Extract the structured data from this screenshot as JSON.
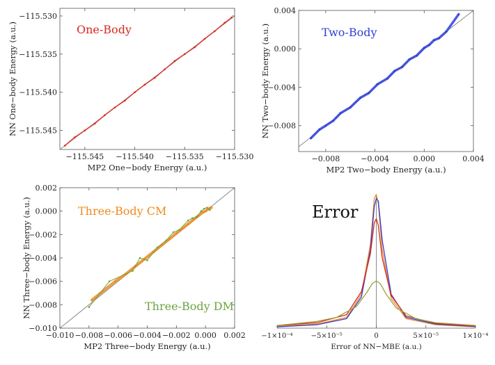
{
  "chart_data": [
    {
      "type": "scatter",
      "id": "one",
      "inset_label": "One-Body",
      "inset_color": "#d6281e",
      "xlabel": "MP2 One−body Energy (a.u.)",
      "ylabel": "NN One−body Energy (a.u.)",
      "xlim": [
        -115.5475,
        -115.53
      ],
      "ylim": [
        -115.5475,
        -115.529
      ],
      "xticks": [
        -115.545,
        -115.54,
        -115.535,
        -115.53
      ],
      "xtick_labels": [
        "−115.545",
        "−115.540",
        "−115.535",
        "−115.530"
      ],
      "yticks": [
        -115.545,
        -115.54,
        -115.535,
        -115.53
      ],
      "ytick_labels": [
        "−115.545",
        "−115.540",
        "−115.535",
        "−115.530"
      ],
      "reference_line": true,
      "series": [
        {
          "color": "#d6281e",
          "points": [
            [
              -115.547,
              -115.547
            ],
            [
              -115.546,
              -115.5459
            ],
            [
              -115.545,
              -115.545
            ],
            [
              -115.544,
              -115.5441
            ],
            [
              -115.543,
              -115.543
            ],
            [
              -115.542,
              -115.542
            ],
            [
              -115.541,
              -115.5411
            ],
            [
              -115.54,
              -115.54
            ],
            [
              -115.539,
              -115.539
            ],
            [
              -115.538,
              -115.5381
            ],
            [
              -115.537,
              -115.537
            ],
            [
              -115.536,
              -115.5359
            ],
            [
              -115.535,
              -115.535
            ],
            [
              -115.534,
              -115.5341
            ],
            [
              -115.533,
              -115.533
            ],
            [
              -115.532,
              -115.532
            ],
            [
              -115.531,
              -115.5309
            ],
            [
              -115.5303,
              -115.5302
            ]
          ]
        }
      ]
    },
    {
      "type": "scatter",
      "id": "two",
      "inset_label": "Two-Body",
      "inset_color": "#2f3fd8",
      "xlabel": "MP2 Two−body Energy (a.u.)",
      "ylabel": "NN Two−body Energy (a.u.)",
      "xlim": [
        -0.0102,
        0.004
      ],
      "ylim": [
        -0.0107,
        0.004
      ],
      "xticks": [
        -0.008,
        -0.004,
        0.0,
        0.004
      ],
      "xtick_labels": [
        "−0.008",
        "−0.004",
        "0.000",
        "0.004"
      ],
      "yticks": [
        -0.008,
        -0.004,
        0.0,
        0.004
      ],
      "ytick_labels": [
        "−0.008",
        "−0.004",
        "0.000",
        "0.004"
      ],
      "reference_line": true,
      "series": [
        {
          "color": "#2f3fd8",
          "points": [
            [
              -0.0092,
              -0.0093
            ],
            [
              -0.0085,
              -0.0084
            ],
            [
              -0.008,
              -0.008
            ],
            [
              -0.0074,
              -0.0075
            ],
            [
              -0.0068,
              -0.0067
            ],
            [
              -0.006,
              -0.0061
            ],
            [
              -0.0052,
              -0.0051
            ],
            [
              -0.0045,
              -0.0046
            ],
            [
              -0.0038,
              -0.0037
            ],
            [
              -0.003,
              -0.0031
            ],
            [
              -0.0024,
              -0.0023
            ],
            [
              -0.0018,
              -0.0019
            ],
            [
              -0.0012,
              -0.0011
            ],
            [
              -0.0006,
              -0.0007
            ],
            [
              0.0,
              0.0001
            ],
            [
              0.0004,
              0.0004
            ],
            [
              0.0008,
              0.0009
            ],
            [
              0.0012,
              0.0011
            ],
            [
              0.0018,
              0.0018
            ],
            [
              0.0028,
              0.0036
            ]
          ]
        }
      ]
    },
    {
      "type": "scatter",
      "id": "three",
      "inset_label": "Three-Body CM",
      "inset_color": "#ef8a1f",
      "inset_label2": "Three-Body DM",
      "inset_color2": "#6aa441",
      "xlabel": "MP2 Three−body Energy (a.u.)",
      "ylabel": "NN Three−body Energy (a.u.)",
      "xlim": [
        -0.01,
        0.002
      ],
      "ylim": [
        -0.01,
        0.002
      ],
      "xticks": [
        -0.01,
        -0.008,
        -0.006,
        -0.004,
        -0.002,
        0.0,
        0.002
      ],
      "xtick_labels": [
        "−0.010",
        "−0.008",
        "−0.006",
        "−0.004",
        "−0.002",
        "0.000",
        "0.002"
      ],
      "yticks": [
        -0.01,
        -0.008,
        -0.006,
        -0.004,
        -0.002,
        0.0,
        0.002
      ],
      "ytick_labels": [
        "−0.010",
        "−0.008",
        "−0.006",
        "−0.004",
        "−0.002",
        "0.000",
        "0.002"
      ],
      "reference_line": true,
      "series": [
        {
          "color": "#ef8a1f",
          "points": [
            [
              -0.0078,
              -0.0076
            ],
            [
              -0.007,
              -0.0068
            ],
            [
              -0.0062,
              -0.006
            ],
            [
              -0.0055,
              -0.0054
            ],
            [
              -0.0048,
              -0.0047
            ],
            [
              -0.0042,
              -0.0041
            ],
            [
              -0.0036,
              -0.0035
            ],
            [
              -0.003,
              -0.0029
            ],
            [
              -0.0025,
              -0.0024
            ],
            [
              -0.002,
              -0.0019
            ],
            [
              -0.0016,
              -0.0015
            ],
            [
              -0.0012,
              -0.0011
            ],
            [
              -0.0008,
              -0.0007
            ],
            [
              -0.0005,
              -0.0004
            ],
            [
              -0.0002,
              -0.0001
            ],
            [
              0.0,
              0.0
            ],
            [
              0.0002,
              0.0002
            ],
            [
              0.0004,
              0.0003
            ]
          ]
        },
        {
          "color": "#6aa441",
          "points": [
            [
              -0.008,
              -0.0082
            ],
            [
              -0.0066,
              -0.006
            ],
            [
              -0.005,
              -0.0051
            ],
            [
              -0.0045,
              -0.004
            ],
            [
              -0.004,
              -0.0042
            ],
            [
              -0.0033,
              -0.0031
            ],
            [
              -0.0027,
              -0.0025
            ],
            [
              -0.0022,
              -0.0018
            ],
            [
              -0.0018,
              -0.0016
            ],
            [
              -0.0012,
              -0.0008
            ],
            [
              -0.0009,
              -0.0006
            ],
            [
              -0.0006,
              -0.0005
            ],
            [
              -0.0003,
              0.0
            ],
            [
              -0.0001,
              0.0002
            ],
            [
              0.0001,
              0.0003
            ],
            [
              0.0003,
              0.0001
            ]
          ]
        }
      ]
    },
    {
      "type": "line",
      "id": "error",
      "title": "Error",
      "xlabel": "Error of NN−MBE (a.u.)",
      "xlim": [
        -0.0001,
        0.0001
      ],
      "ylim": [
        0,
        1.05
      ],
      "xticks": [
        -0.0001,
        -5e-05,
        0,
        5e-05,
        0.0001
      ],
      "xtick_labels": [
        "−1×10⁻⁴",
        "−5×10⁻⁵",
        "0",
        "5×10⁻⁵",
        "1×10⁻⁴"
      ],
      "series": [
        {
          "color": "#ef8a1f",
          "points": [
            [
              -0.0001,
              0.015
            ],
            [
              -6e-05,
              0.03
            ],
            [
              -3e-05,
              0.08
            ],
            [
              -1.5e-05,
              0.25
            ],
            [
              -6e-06,
              0.62
            ],
            [
              -2e-06,
              0.96
            ],
            [
              0,
              0.99
            ],
            [
              2e-06,
              0.92
            ],
            [
              6e-06,
              0.58
            ],
            [
              1.5e-05,
              0.22
            ],
            [
              3e-05,
              0.07
            ],
            [
              6e-05,
              0.025
            ],
            [
              0.0001,
              0.01
            ]
          ]
        },
        {
          "color": "#2f3fd8",
          "points": [
            [
              -0.0001,
              0.01
            ],
            [
              -6e-05,
              0.025
            ],
            [
              -3e-05,
              0.07
            ],
            [
              -1.5e-05,
              0.23
            ],
            [
              -6e-06,
              0.58
            ],
            [
              -2e-06,
              0.9
            ],
            [
              0,
              0.96
            ],
            [
              2e-06,
              0.94
            ],
            [
              6e-06,
              0.65
            ],
            [
              1.5e-05,
              0.25
            ],
            [
              3e-05,
              0.08
            ],
            [
              6e-05,
              0.03
            ],
            [
              0.0001,
              0.012
            ]
          ]
        },
        {
          "color": "#d6281e",
          "points": [
            [
              -0.0001,
              0.02
            ],
            [
              -6e-05,
              0.04
            ],
            [
              -3e-05,
              0.1
            ],
            [
              -1.5e-05,
              0.27
            ],
            [
              -6e-06,
              0.55
            ],
            [
              -2e-06,
              0.78
            ],
            [
              0,
              0.81
            ],
            [
              2e-06,
              0.76
            ],
            [
              6e-06,
              0.52
            ],
            [
              1.5e-05,
              0.24
            ],
            [
              3e-05,
              0.09
            ],
            [
              6e-05,
              0.035
            ],
            [
              0.0001,
              0.015
            ]
          ]
        },
        {
          "color": "#9aa23a",
          "points": [
            [
              -0.0001,
              0.02
            ],
            [
              -6e-05,
              0.05
            ],
            [
              -4e-05,
              0.08
            ],
            [
              -2e-05,
              0.16
            ],
            [
              -1e-05,
              0.26
            ],
            [
              -4e-06,
              0.33
            ],
            [
              0,
              0.35
            ],
            [
              4e-06,
              0.33
            ],
            [
              1e-05,
              0.25
            ],
            [
              2e-05,
              0.15
            ],
            [
              4e-05,
              0.07
            ],
            [
              6e-05,
              0.04
            ],
            [
              0.0001,
              0.02
            ]
          ]
        }
      ]
    }
  ]
}
